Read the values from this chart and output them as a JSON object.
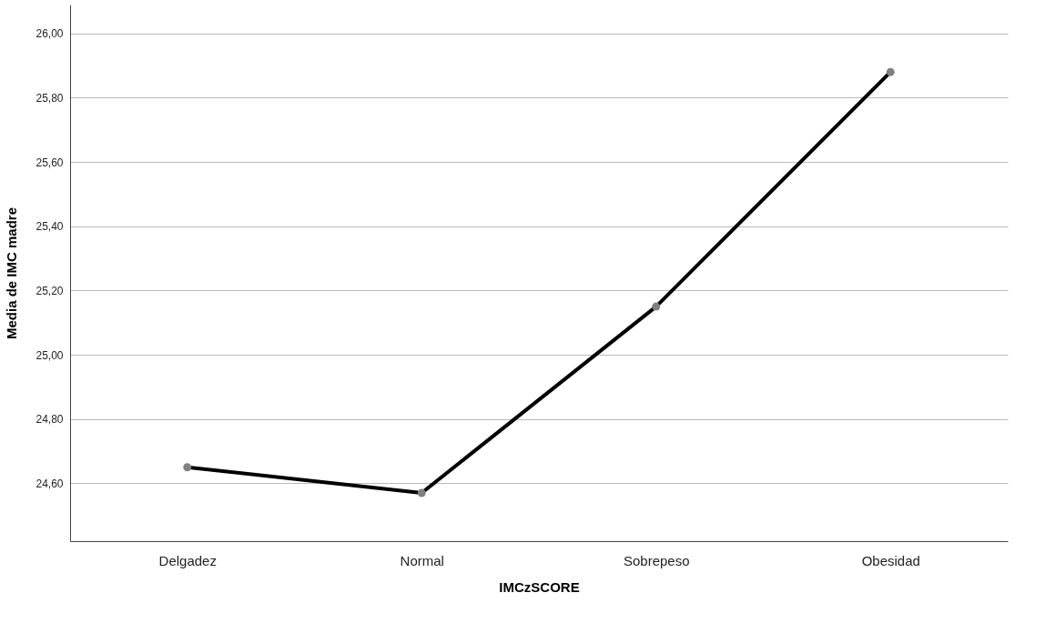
{
  "chart_data": {
    "type": "line",
    "xlabel": "IMCzSCORE",
    "ylabel": "Media de IMC madre",
    "categories": [
      "Delgadez",
      "Normal",
      "Sobrepeso",
      "Obesidad"
    ],
    "series": [
      {
        "color": "#000000",
        "values": [
          24.65,
          24.57,
          25.15,
          25.88
        ]
      }
    ],
    "ylim": [
      24.42,
      26.09
    ],
    "yticks": [
      {
        "value": 24.6,
        "label": "24,60"
      },
      {
        "value": 24.8,
        "label": "24,80"
      },
      {
        "value": 25.0,
        "label": "25,00"
      },
      {
        "value": 25.2,
        "label": "25,20"
      },
      {
        "value": 25.4,
        "label": "25,40"
      },
      {
        "value": 25.6,
        "label": "25,60"
      },
      {
        "value": 25.8,
        "label": "25,80"
      },
      {
        "value": 26.0,
        "label": "26,00"
      }
    ],
    "grid": "y",
    "marker": "circle",
    "line_style": "solid",
    "legend": false
  }
}
